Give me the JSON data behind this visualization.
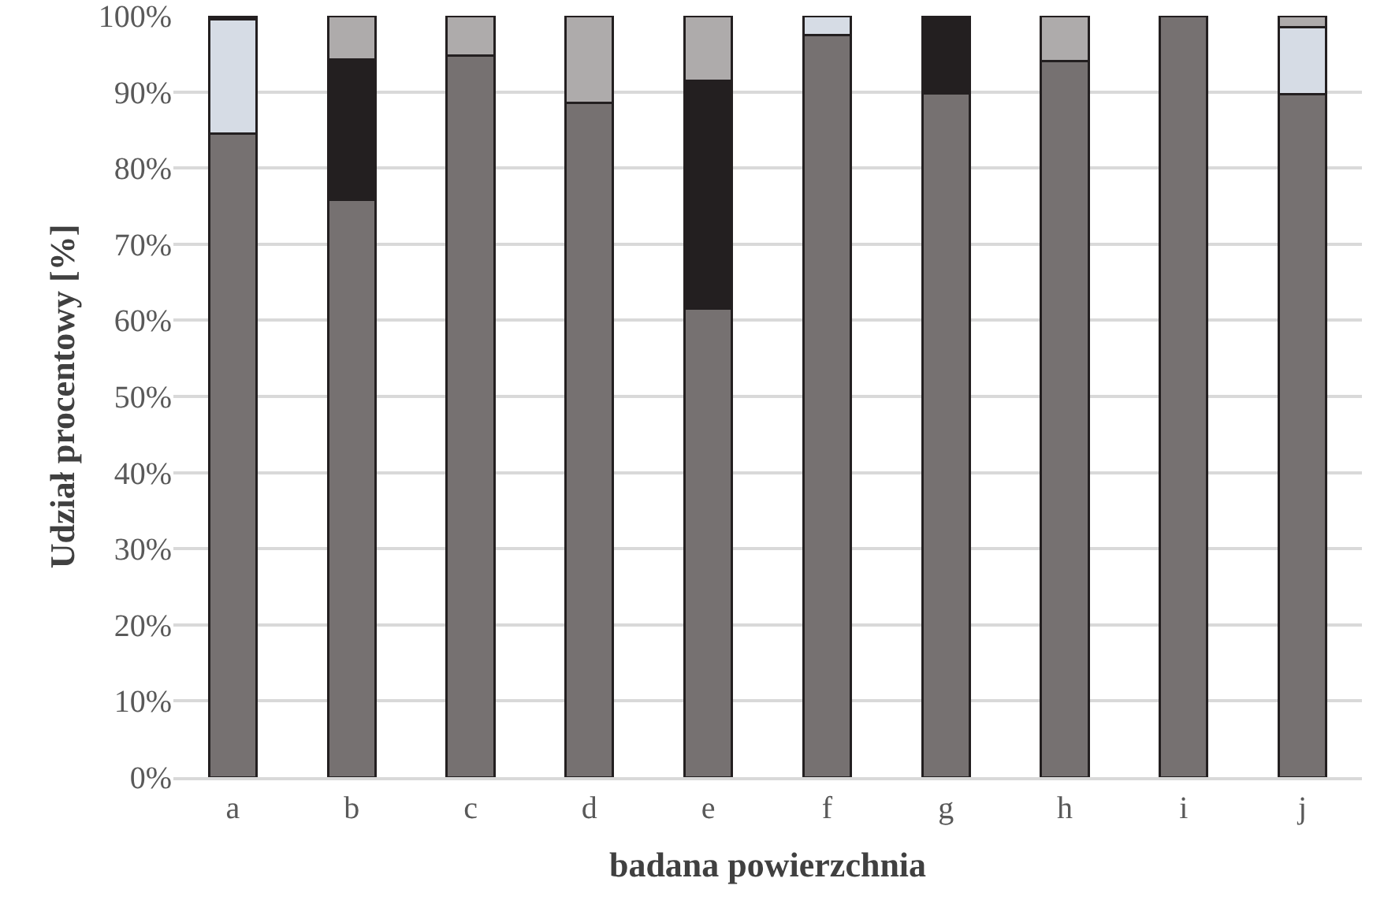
{
  "chart_data": {
    "type": "bar",
    "stacked": true,
    "xlabel": "badana powierzchnia",
    "ylabel": "Udział procentowy [%]",
    "categories": [
      "a",
      "b",
      "c",
      "d",
      "e",
      "f",
      "g",
      "h",
      "i",
      "j"
    ],
    "series": [
      {
        "color": "#767171",
        "values": [
          84.5,
          75.8,
          94.8,
          88.6,
          61.5,
          97.5,
          89.8,
          94,
          100,
          89.7
        ]
      },
      {
        "color": "#d6dce5",
        "values": [
          15,
          null,
          null,
          null,
          null,
          2.5,
          null,
          null,
          null,
          8.8
        ]
      },
      {
        "color": "#231f20",
        "values": [
          0.5,
          18.5,
          null,
          null,
          30,
          null,
          10.2,
          null,
          null,
          null
        ]
      },
      {
        "color": "#aeabab",
        "values": [
          null,
          5.7,
          5.2,
          11.4,
          8.5,
          null,
          null,
          6,
          null,
          1.5
        ]
      }
    ],
    "ylim": [
      0,
      100
    ],
    "yticks": [
      {
        "value": 0,
        "label": "0%"
      },
      {
        "value": 10,
        "label": "10%"
      },
      {
        "value": 20,
        "label": "20%"
      },
      {
        "value": 30,
        "label": "30%"
      },
      {
        "value": 40,
        "label": "40%"
      },
      {
        "value": 50,
        "label": "50%"
      },
      {
        "value": 60,
        "label": "60%"
      },
      {
        "value": 70,
        "label": "70%"
      },
      {
        "value": 80,
        "label": "80%"
      },
      {
        "value": 90,
        "label": "90%"
      },
      {
        "value": 100,
        "label": "100%"
      }
    ],
    "grid": "y"
  }
}
